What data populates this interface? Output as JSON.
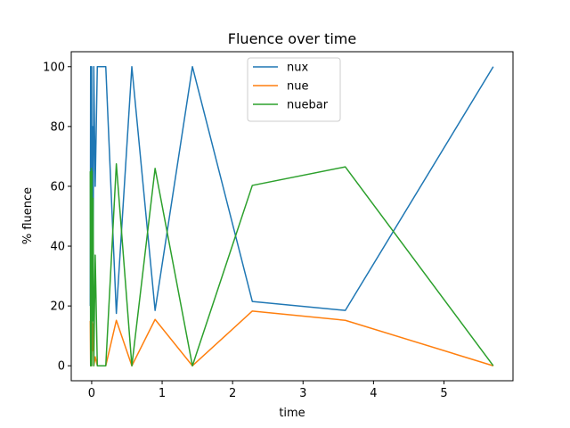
{
  "chart_data": {
    "type": "line",
    "title": "Fluence over time",
    "xlabel": "time",
    "ylabel": "% fluence",
    "xlim": [
      -0.29,
      5.98
    ],
    "ylim": [
      -5,
      105
    ],
    "xticks": [
      0,
      1,
      2,
      3,
      4,
      5
    ],
    "yticks": [
      0,
      20,
      40,
      60,
      80,
      100
    ],
    "grid": false,
    "legend_position": "top-center",
    "series": [
      {
        "name": "nux",
        "color": "#1f77b4",
        "points": [
          [
            -0.02,
            20
          ],
          [
            -0.015,
            100
          ],
          [
            -0.01,
            35
          ],
          [
            0.0,
            100
          ],
          [
            0.005,
            20
          ],
          [
            0.01,
            80
          ],
          [
            0.02,
            30
          ],
          [
            0.03,
            100
          ],
          [
            0.05,
            60
          ],
          [
            0.08,
            100
          ],
          [
            0.2,
            100
          ],
          [
            0.35,
            17.5
          ],
          [
            0.57,
            100
          ],
          [
            0.9,
            18.5
          ],
          [
            1.43,
            100
          ],
          [
            2.28,
            21.5
          ],
          [
            3.6,
            18.5
          ],
          [
            5.7,
            100
          ]
        ]
      },
      {
        "name": "nue",
        "color": "#ff7f0e",
        "points": [
          [
            -0.02,
            15
          ],
          [
            -0.015,
            0
          ],
          [
            -0.01,
            20
          ],
          [
            0.0,
            0
          ],
          [
            0.005,
            15
          ],
          [
            0.01,
            5
          ],
          [
            0.02,
            14
          ],
          [
            0.03,
            0
          ],
          [
            0.05,
            3
          ],
          [
            0.08,
            0
          ],
          [
            0.2,
            0
          ],
          [
            0.35,
            15.2
          ],
          [
            0.57,
            0
          ],
          [
            0.9,
            15.5
          ],
          [
            1.43,
            0
          ],
          [
            2.28,
            18.3
          ],
          [
            3.6,
            15.2
          ],
          [
            5.7,
            0
          ]
        ]
      },
      {
        "name": "nuebar",
        "color": "#2ca02c",
        "points": [
          [
            -0.02,
            65
          ],
          [
            -0.015,
            0
          ],
          [
            -0.01,
            50
          ],
          [
            -0.005,
            66
          ],
          [
            0.0,
            0
          ],
          [
            0.005,
            65
          ],
          [
            0.01,
            15
          ],
          [
            0.02,
            56
          ],
          [
            0.03,
            0
          ],
          [
            0.05,
            37
          ],
          [
            0.08,
            0
          ],
          [
            0.2,
            0
          ],
          [
            0.35,
            67.5
          ],
          [
            0.57,
            0
          ],
          [
            0.9,
            66
          ],
          [
            1.43,
            0
          ],
          [
            2.28,
            60.3
          ],
          [
            3.6,
            66.5
          ],
          [
            5.7,
            0
          ]
        ]
      }
    ]
  }
}
